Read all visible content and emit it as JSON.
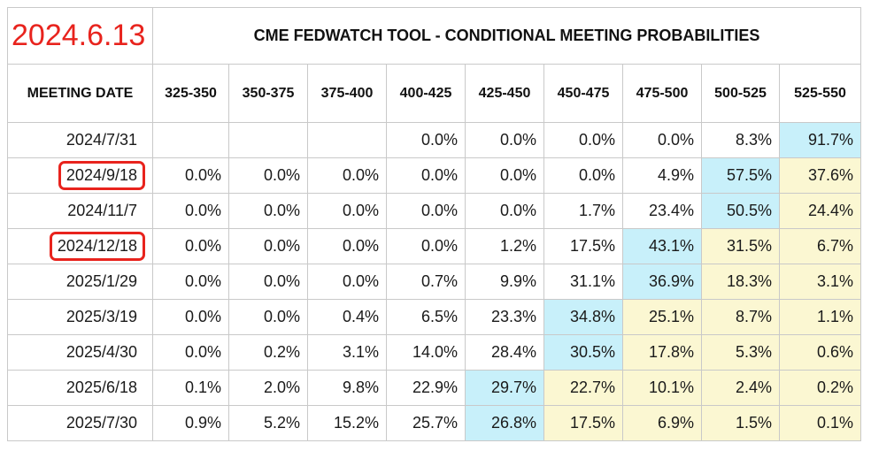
{
  "date_stamp": "2024.6.13",
  "chart_data": {
    "type": "table",
    "title": "CME FEDWATCH TOOL - CONDITIONAL MEETING PROBABILITIES",
    "row_header": "MEETING DATE",
    "columns": [
      "325-350",
      "350-375",
      "375-400",
      "400-425",
      "425-450",
      "450-475",
      "475-500",
      "500-525",
      "525-550"
    ],
    "rows": [
      {
        "date": "2024/7/31",
        "circled": false,
        "values": [
          "",
          "",
          "",
          "0.0%",
          "0.0%",
          "0.0%",
          "0.0%",
          "8.3%",
          "91.7%"
        ]
      },
      {
        "date": "2024/9/18",
        "circled": true,
        "values": [
          "0.0%",
          "0.0%",
          "0.0%",
          "0.0%",
          "0.0%",
          "0.0%",
          "4.9%",
          "57.5%",
          "37.6%"
        ]
      },
      {
        "date": "2024/11/7",
        "circled": false,
        "values": [
          "0.0%",
          "0.0%",
          "0.0%",
          "0.0%",
          "0.0%",
          "1.7%",
          "23.4%",
          "50.5%",
          "24.4%"
        ]
      },
      {
        "date": "2024/12/18",
        "circled": true,
        "values": [
          "0.0%",
          "0.0%",
          "0.0%",
          "0.0%",
          "1.2%",
          "17.5%",
          "43.1%",
          "31.5%",
          "6.7%"
        ]
      },
      {
        "date": "2025/1/29",
        "circled": false,
        "values": [
          "0.0%",
          "0.0%",
          "0.0%",
          "0.7%",
          "9.9%",
          "31.1%",
          "36.9%",
          "18.3%",
          "3.1%"
        ]
      },
      {
        "date": "2025/3/19",
        "circled": false,
        "values": [
          "0.0%",
          "0.0%",
          "0.4%",
          "6.5%",
          "23.3%",
          "34.8%",
          "25.1%",
          "8.7%",
          "1.1%"
        ]
      },
      {
        "date": "2025/4/30",
        "circled": false,
        "values": [
          "0.0%",
          "0.2%",
          "3.1%",
          "14.0%",
          "28.4%",
          "30.5%",
          "17.8%",
          "5.3%",
          "0.6%"
        ]
      },
      {
        "date": "2025/6/18",
        "circled": false,
        "values": [
          "0.1%",
          "2.0%",
          "9.8%",
          "22.9%",
          "29.7%",
          "22.7%",
          "10.1%",
          "2.4%",
          "0.2%"
        ]
      },
      {
        "date": "2025/7/30",
        "circled": false,
        "values": [
          "0.9%",
          "5.2%",
          "15.2%",
          "25.7%",
          "26.8%",
          "17.5%",
          "6.9%",
          "1.5%",
          "0.1%"
        ]
      }
    ],
    "colors": {
      "max_cell": "#c8f0fa",
      "above_max_cell": "#fbf7d2",
      "circle": "#e8231d",
      "stamp": "#e8231d"
    }
  }
}
